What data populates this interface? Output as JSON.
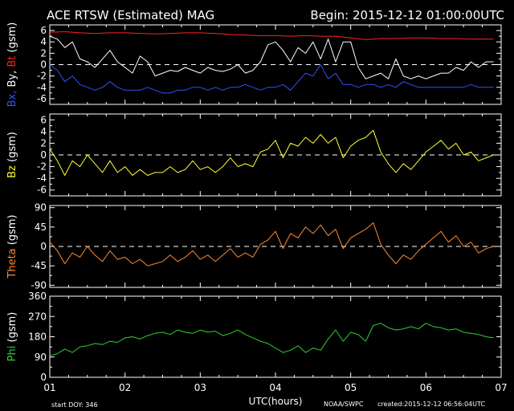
{
  "header": {
    "title": "ACE RTSW (Estimated) MAG",
    "begin": "Begin: 2015-12-12 01:00:00UTC"
  },
  "footer": {
    "start_doy": "start DOY:  346",
    "xlabel": "UTC(hours)",
    "credit": "NOAA/SWPC",
    "created": "created:2015-12-12 06:56:04UTC"
  },
  "colors": {
    "bt": "#ff2020",
    "bx": "#3050ff",
    "by": "#ffffff",
    "bz": "#ffff30",
    "theta": "#ff8a30",
    "phi": "#30d030",
    "axes": "#ffffff"
  },
  "chart_data": [
    {
      "type": "line",
      "panel": "B components",
      "ylabel_parts": [
        {
          "text": "Bx,",
          "color": "#3050ff"
        },
        {
          "text": " By,",
          "color": "#ffffff"
        },
        {
          "text": " Bt",
          "color": "#ff2020"
        },
        {
          "text": " (gsm)",
          "color": "#ffffff"
        }
      ],
      "ylim": [
        -7,
        7
      ],
      "yticks": [
        -6,
        -4,
        -2,
        0,
        2,
        4,
        6
      ],
      "zero_line": true,
      "series": [
        {
          "name": "Bt",
          "color": "#ff2020",
          "x": [
            1.0,
            1.2,
            1.4,
            1.6,
            1.8,
            2.0,
            2.2,
            2.4,
            2.6,
            2.8,
            3.0,
            3.2,
            3.4,
            3.6,
            3.8,
            4.0,
            4.2,
            4.4,
            4.6,
            4.8,
            5.0,
            5.2,
            5.4,
            5.6,
            5.8,
            6.0,
            6.2,
            6.4,
            6.6,
            6.9
          ],
          "y": [
            5.7,
            5.8,
            5.6,
            5.5,
            5.6,
            5.6,
            5.5,
            5.4,
            5.5,
            5.6,
            5.6,
            5.5,
            5.3,
            5.2,
            5.1,
            5.1,
            5.0,
            5.1,
            5.0,
            5.0,
            4.7,
            4.4,
            4.6,
            4.6,
            4.7,
            4.7,
            4.6,
            4.6,
            4.5,
            4.5
          ]
        },
        {
          "name": "By",
          "color": "#ffffff",
          "x": [
            1.0,
            1.1,
            1.2,
            1.3,
            1.4,
            1.5,
            1.6,
            1.7,
            1.8,
            1.9,
            2.0,
            2.1,
            2.2,
            2.3,
            2.4,
            2.5,
            2.6,
            2.7,
            2.8,
            2.9,
            3.0,
            3.1,
            3.2,
            3.3,
            3.4,
            3.5,
            3.6,
            3.7,
            3.8,
            3.9,
            4.0,
            4.1,
            4.2,
            4.3,
            4.4,
            4.5,
            4.6,
            4.7,
            4.8,
            4.9,
            5.0,
            5.1,
            5.2,
            5.3,
            5.4,
            5.5,
            5.6,
            5.7,
            5.8,
            5.9,
            6.0,
            6.1,
            6.2,
            6.3,
            6.4,
            6.5,
            6.6,
            6.7,
            6.8,
            6.9
          ],
          "y": [
            5.0,
            4.5,
            3.0,
            4.0,
            1.0,
            0.5,
            -0.5,
            1.0,
            2.5,
            0.5,
            -0.5,
            -1.5,
            1.5,
            0.5,
            -2.0,
            -1.5,
            -1.0,
            -1.2,
            -0.5,
            -1.0,
            -1.5,
            -0.5,
            -1.0,
            -1.2,
            -0.8,
            0.0,
            -1.5,
            -1.0,
            0.5,
            3.5,
            4.0,
            2.5,
            0.5,
            3.0,
            2.0,
            4.0,
            1.0,
            4.5,
            0.5,
            4.0,
            4.0,
            -0.5,
            -2.5,
            -2.0,
            -1.5,
            -2.5,
            1.0,
            -2.0,
            -2.5,
            -2.0,
            -2.5,
            -2.0,
            -1.5,
            -1.5,
            -0.5,
            -1.0,
            0.5,
            -0.5,
            0.5,
            0.5
          ]
        },
        {
          "name": "Bx",
          "color": "#3050ff",
          "x": [
            1.0,
            1.1,
            1.2,
            1.3,
            1.4,
            1.5,
            1.6,
            1.7,
            1.8,
            1.9,
            2.0,
            2.1,
            2.2,
            2.3,
            2.4,
            2.5,
            2.6,
            2.7,
            2.8,
            2.9,
            3.0,
            3.1,
            3.2,
            3.3,
            3.4,
            3.5,
            3.6,
            3.7,
            3.8,
            3.9,
            4.0,
            4.1,
            4.2,
            4.3,
            4.4,
            4.5,
            4.6,
            4.7,
            4.8,
            4.9,
            5.0,
            5.1,
            5.2,
            5.3,
            5.4,
            5.5,
            5.6,
            5.7,
            5.8,
            5.9,
            6.0,
            6.1,
            6.2,
            6.3,
            6.4,
            6.5,
            6.6,
            6.7,
            6.8,
            6.9
          ],
          "y": [
            0.0,
            -1.0,
            -3.0,
            -2.0,
            -3.5,
            -4.0,
            -4.5,
            -4.0,
            -3.0,
            -4.0,
            -4.5,
            -4.5,
            -4.5,
            -4.0,
            -4.5,
            -5.0,
            -5.0,
            -4.5,
            -4.5,
            -4.0,
            -4.0,
            -4.5,
            -4.0,
            -4.5,
            -4.0,
            -4.0,
            -3.5,
            -4.0,
            -4.5,
            -4.0,
            -4.0,
            -3.5,
            -4.5,
            -3.0,
            -1.5,
            -2.0,
            0.0,
            -2.5,
            -1.5,
            -3.5,
            -3.5,
            -4.0,
            -3.5,
            -3.5,
            -4.0,
            -3.5,
            -4.0,
            -3.0,
            -3.5,
            -4.0,
            -4.0,
            -4.0,
            -4.0,
            -4.0,
            -4.0,
            -4.0,
            -3.5,
            -4.0,
            -4.0,
            -4.0
          ]
        }
      ]
    },
    {
      "type": "line",
      "panel": "Bz",
      "ylabel_parts": [
        {
          "text": "Bz",
          "color": "#ffff30"
        },
        {
          "text": "  (gsm)",
          "color": "#ffffff"
        }
      ],
      "ylim": [
        -7,
        7
      ],
      "yticks": [
        -6,
        -4,
        -2,
        0,
        2,
        4,
        6
      ],
      "zero_line": true,
      "series": [
        {
          "name": "Bz",
          "color": "#ffff30",
          "x": [
            1.0,
            1.1,
            1.2,
            1.3,
            1.4,
            1.5,
            1.6,
            1.7,
            1.8,
            1.9,
            2.0,
            2.1,
            2.2,
            2.3,
            2.4,
            2.5,
            2.6,
            2.7,
            2.8,
            2.9,
            3.0,
            3.1,
            3.2,
            3.3,
            3.4,
            3.5,
            3.6,
            3.7,
            3.8,
            3.9,
            4.0,
            4.1,
            4.2,
            4.3,
            4.4,
            4.5,
            4.6,
            4.7,
            4.8,
            4.9,
            5.0,
            5.1,
            5.2,
            5.3,
            5.4,
            5.5,
            5.6,
            5.7,
            5.8,
            5.9,
            6.0,
            6.1,
            6.2,
            6.3,
            6.4,
            6.5,
            6.6,
            6.7,
            6.8,
            6.9
          ],
          "y": [
            1.0,
            -1.0,
            -3.5,
            -1.0,
            -2.0,
            0.0,
            -1.5,
            -3.0,
            -1.0,
            -3.0,
            -2.0,
            -3.5,
            -2.5,
            -3.5,
            -3.0,
            -3.0,
            -2.0,
            -3.0,
            -2.5,
            -1.0,
            -2.5,
            -2.0,
            -3.0,
            -2.0,
            -0.5,
            -2.0,
            -1.5,
            -2.0,
            0.5,
            1.0,
            2.5,
            -0.5,
            2.0,
            1.5,
            3.0,
            2.0,
            3.5,
            2.0,
            3.0,
            -0.5,
            1.5,
            2.5,
            3.0,
            4.2,
            0.5,
            -1.5,
            -3.0,
            -1.5,
            -2.5,
            -1.0,
            0.5,
            1.5,
            2.5,
            1.0,
            2.0,
            0.0,
            0.5,
            -1.0,
            -0.5,
            0.0
          ]
        }
      ]
    },
    {
      "type": "line",
      "panel": "Theta",
      "ylabel_parts": [
        {
          "text": "Theta",
          "color": "#ff8a30"
        },
        {
          "text": " (gsm)",
          "color": "#ffffff"
        }
      ],
      "ylim": [
        -95,
        95
      ],
      "yticks": [
        -90,
        -45,
        0,
        45,
        90
      ],
      "zero_line": true,
      "series": [
        {
          "name": "Theta",
          "color": "#ff8a30",
          "x": [
            1.0,
            1.1,
            1.2,
            1.3,
            1.4,
            1.5,
            1.6,
            1.7,
            1.8,
            1.9,
            2.0,
            2.1,
            2.2,
            2.3,
            2.4,
            2.5,
            2.6,
            2.7,
            2.8,
            2.9,
            3.0,
            3.1,
            3.2,
            3.3,
            3.4,
            3.5,
            3.6,
            3.7,
            3.8,
            3.9,
            4.0,
            4.1,
            4.2,
            4.3,
            4.4,
            4.5,
            4.6,
            4.7,
            4.8,
            4.9,
            5.0,
            5.1,
            5.2,
            5.3,
            5.4,
            5.5,
            5.6,
            5.7,
            5.8,
            5.9,
            6.0,
            6.1,
            6.2,
            6.3,
            6.4,
            6.5,
            6.6,
            6.7,
            6.8,
            6.9
          ],
          "y": [
            10,
            -10,
            -40,
            -15,
            -25,
            0,
            -20,
            -35,
            -10,
            -30,
            -25,
            -40,
            -30,
            -45,
            -40,
            -35,
            -20,
            -35,
            -25,
            -10,
            -30,
            -20,
            -35,
            -20,
            -5,
            -25,
            -15,
            -25,
            5,
            15,
            35,
            -5,
            30,
            20,
            45,
            30,
            50,
            25,
            40,
            -5,
            20,
            30,
            40,
            55,
            5,
            -20,
            -40,
            -20,
            -30,
            -10,
            5,
            20,
            35,
            10,
            25,
            0,
            10,
            -15,
            -5,
            0
          ]
        }
      ]
    },
    {
      "type": "line",
      "panel": "Phi",
      "ylabel_parts": [
        {
          "text": "Phi",
          "color": "#30d030"
        },
        {
          "text": "  (gsm)",
          "color": "#ffffff"
        }
      ],
      "ylim": [
        0,
        360
      ],
      "yticks": [
        0,
        90,
        180,
        270,
        360
      ],
      "zero_line": false,
      "series": [
        {
          "name": "Phi",
          "color": "#30d030",
          "x": [
            1.0,
            1.1,
            1.2,
            1.3,
            1.4,
            1.5,
            1.6,
            1.7,
            1.8,
            1.9,
            2.0,
            2.1,
            2.2,
            2.3,
            2.4,
            2.5,
            2.6,
            2.7,
            2.8,
            2.9,
            3.0,
            3.1,
            3.2,
            3.3,
            3.4,
            3.5,
            3.6,
            3.7,
            3.8,
            3.9,
            4.0,
            4.1,
            4.2,
            4.3,
            4.4,
            4.5,
            4.6,
            4.7,
            4.8,
            4.9,
            5.0,
            5.1,
            5.2,
            5.3,
            5.4,
            5.5,
            5.6,
            5.7,
            5.8,
            5.9,
            6.0,
            6.1,
            6.2,
            6.3,
            6.4,
            6.5,
            6.6,
            6.7,
            6.8,
            6.9
          ],
          "y": [
            95,
            105,
            125,
            110,
            135,
            140,
            150,
            145,
            160,
            155,
            175,
            180,
            170,
            185,
            195,
            200,
            190,
            210,
            200,
            195,
            210,
            200,
            205,
            185,
            195,
            210,
            190,
            175,
            160,
            150,
            130,
            110,
            120,
            140,
            110,
            130,
            120,
            170,
            210,
            160,
            200,
            190,
            160,
            230,
            240,
            220,
            210,
            215,
            225,
            215,
            240,
            225,
            220,
            210,
            215,
            200,
            195,
            190,
            180,
            175
          ]
        }
      ]
    }
  ],
  "xaxis": {
    "range": [
      1,
      7
    ],
    "major_ticks": [
      "01",
      "02",
      "03",
      "04",
      "05",
      "06",
      "07"
    ]
  }
}
